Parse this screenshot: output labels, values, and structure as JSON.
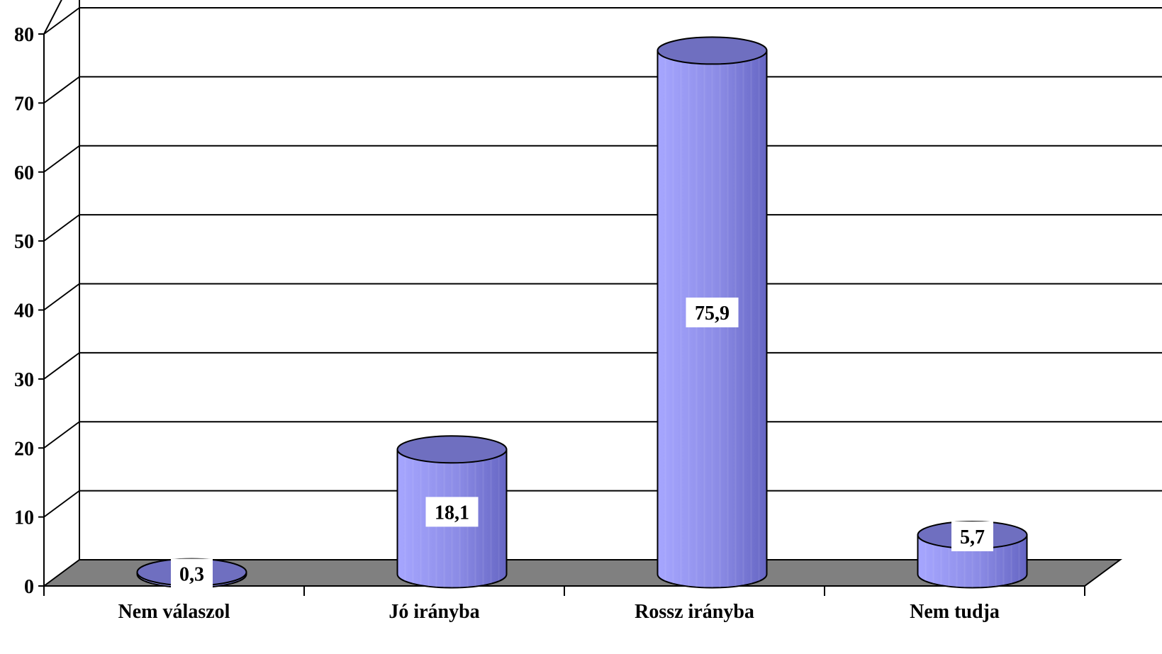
{
  "chart_data": {
    "type": "bar",
    "style": "3d-cylinder",
    "categories": [
      "Nem válaszol",
      "Jó irányba",
      "Rossz irányba",
      "Nem tudja"
    ],
    "values": [
      0.3,
      18.1,
      75.9,
      5.7
    ],
    "data_labels": [
      "0,3",
      "18,1",
      "75,9",
      "5,7"
    ],
    "yticks": [
      0,
      10,
      20,
      30,
      40,
      50,
      60,
      70,
      80
    ],
    "ylim": [
      0,
      80
    ],
    "grid": true,
    "legend": "none",
    "colors": {
      "bar_light": "#a6a6ff",
      "bar_mid": "#8c8ce6",
      "bar_dark": "#6666c4",
      "bar_top": "#6f6fc0",
      "floor": "#808080",
      "grid": "#000000",
      "label_box": "#ffffff"
    }
  }
}
